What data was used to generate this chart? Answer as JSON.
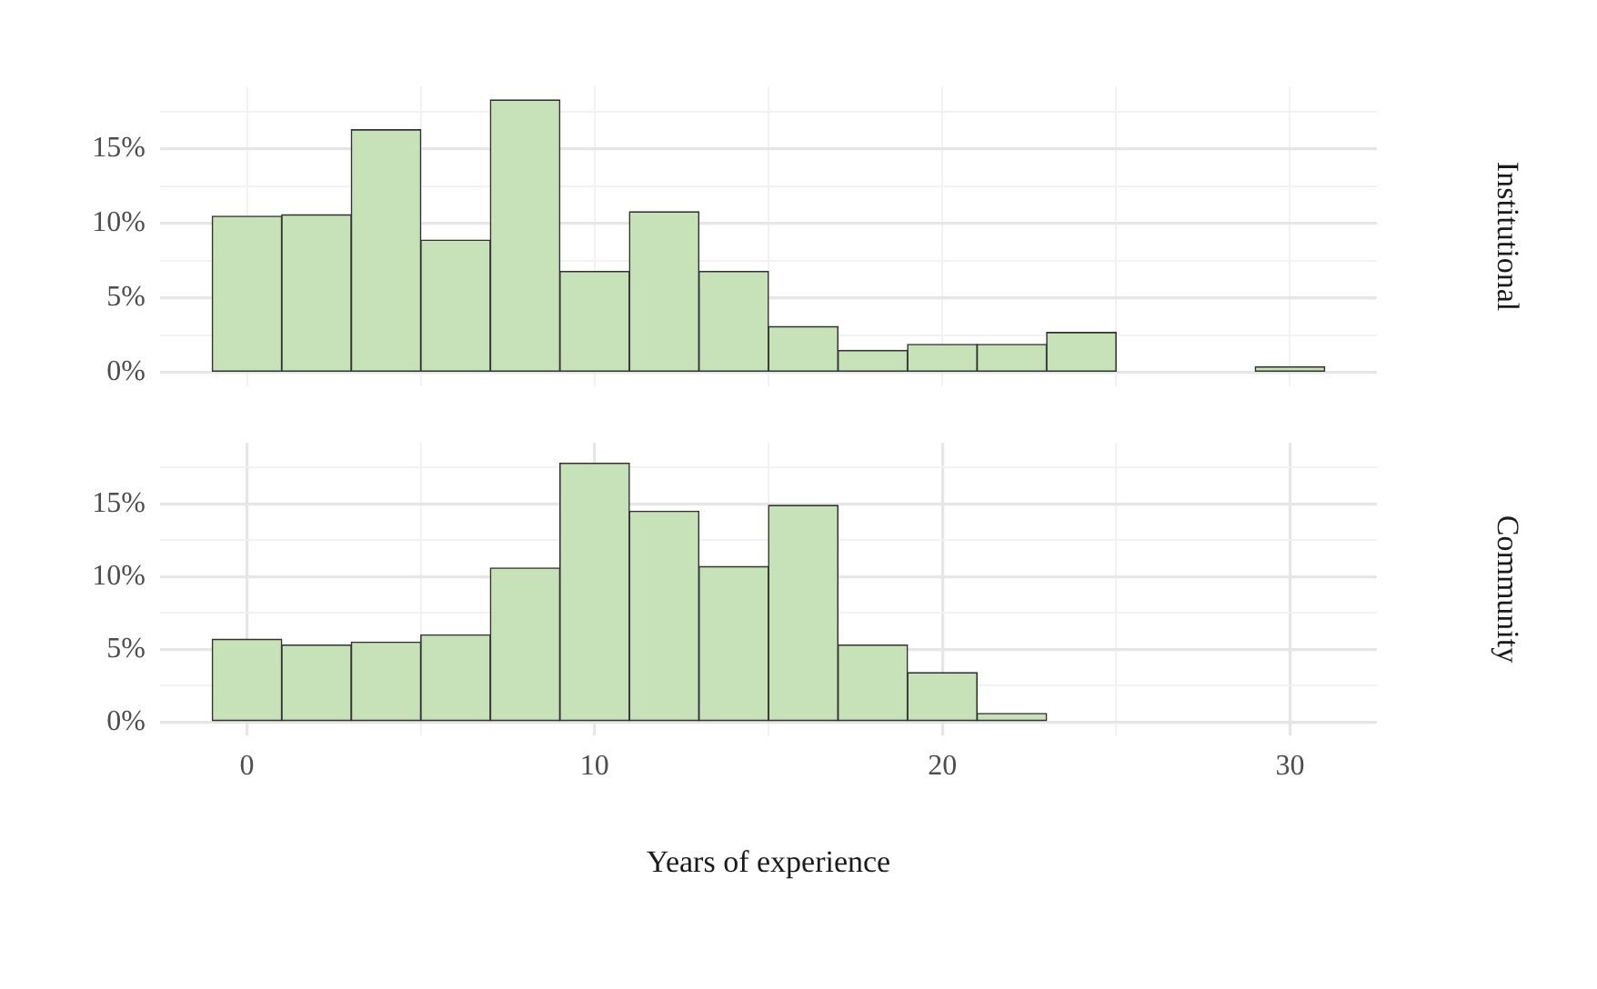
{
  "chart_data": [
    {
      "type": "histogram",
      "y2label": "Institutional",
      "bins": [
        -1,
        1,
        3,
        5,
        7,
        9,
        11,
        13,
        15,
        17,
        19,
        21,
        23,
        25,
        27,
        29,
        31
      ],
      "values": [
        10.5,
        10.6,
        16.3,
        8.9,
        18.3,
        6.8,
        10.8,
        6.8,
        3.1,
        1.5,
        1.9,
        1.9,
        2.7,
        0,
        0,
        0.4
      ],
      "color": "#c7e2b9",
      "xlim": [
        -2.5,
        32.5
      ],
      "xticks": [
        {
          "value": 0,
          "label": null
        },
        {
          "value": 5,
          "label": null
        },
        {
          "value": 10,
          "label": null
        },
        {
          "value": 15,
          "label": null
        },
        {
          "value": 20,
          "label": null
        },
        {
          "value": 25,
          "label": null
        },
        {
          "value": 30,
          "label": null
        }
      ],
      "ylim": [
        -0.9,
        19.2
      ],
      "yticks": [
        {
          "value": 0,
          "label": "0%"
        },
        {
          "value": 2.5,
          "label": null
        },
        {
          "value": 5,
          "label": "5%"
        },
        {
          "value": 7.5,
          "label": null
        },
        {
          "value": 10,
          "label": "10%"
        },
        {
          "value": 12.5,
          "label": null
        },
        {
          "value": 15,
          "label": "15%"
        },
        {
          "value": 17.5,
          "label": null
        }
      ],
      "grid": true,
      "tick_labels": "y"
    },
    {
      "type": "histogram",
      "y2label": "Community",
      "xlabel": "Years of experience",
      "bins": [
        -1,
        1,
        3,
        5,
        7,
        9,
        11,
        13,
        15,
        17,
        19,
        21,
        23,
        25,
        27,
        29,
        31
      ],
      "values": [
        5.7,
        5.3,
        5.5,
        6.0,
        10.6,
        17.8,
        14.5,
        10.7,
        14.9,
        5.3,
        3.4,
        0.6,
        0,
        0,
        0,
        0
      ],
      "color": "#c7e2b9",
      "xlim": [
        -2.5,
        32.5
      ],
      "xticks": [
        {
          "value": 0,
          "label": "0"
        },
        {
          "value": 5,
          "label": null
        },
        {
          "value": 10,
          "label": "10"
        },
        {
          "value": 15,
          "label": null
        },
        {
          "value": 20,
          "label": "20"
        },
        {
          "value": 25,
          "label": null
        },
        {
          "value": 30,
          "label": "30"
        }
      ],
      "ylim": [
        -0.9,
        19.2
      ],
      "yticks": [
        {
          "value": 0,
          "label": "0%"
        },
        {
          "value": 2.5,
          "label": null
        },
        {
          "value": 5,
          "label": "5%"
        },
        {
          "value": 7.5,
          "label": null
        },
        {
          "value": 10,
          "label": "10%"
        },
        {
          "value": 12.5,
          "label": null
        },
        {
          "value": 15,
          "label": "15%"
        },
        {
          "value": 17.5,
          "label": null
        }
      ],
      "grid": true
    }
  ]
}
